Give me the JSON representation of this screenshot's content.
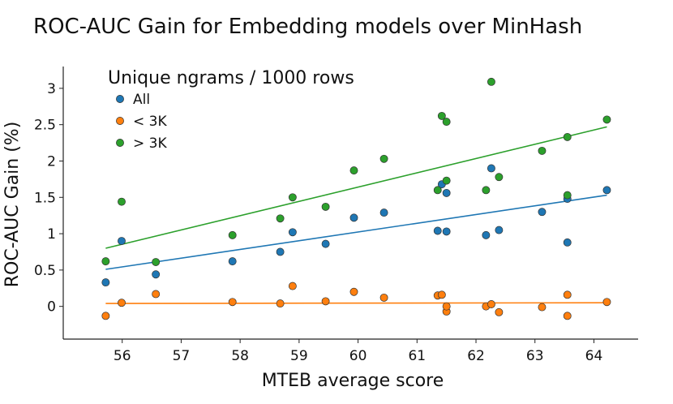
{
  "chart_data": {
    "type": "scatter",
    "title": "ROC-AUC Gain for Embedding models over MinHash",
    "xlabel": "MTEB average score",
    "ylabel": "ROC-AUC Gain (%)",
    "xlim": [
      55.0,
      64.75
    ],
    "ylim": [
      -0.45,
      3.3
    ],
    "xticks": [
      56,
      57,
      58,
      59,
      60,
      61,
      62,
      63,
      64
    ],
    "yticks": [
      0,
      0.5,
      1,
      1.5,
      2,
      2.5,
      3
    ],
    "x_tick_labels": [
      "56",
      "57",
      "58",
      "59",
      "60",
      "61",
      "62",
      "63",
      "64"
    ],
    "y_tick_labels": [
      "0",
      "0.5",
      "1",
      "1.5",
      "2",
      "2.5",
      "3"
    ],
    "grid": false,
    "legend": {
      "title": "Unique ngrams / 1000 rows",
      "position": "top-left"
    },
    "series": [
      {
        "name": "All",
        "color": "#1f77b4",
        "points": [
          [
            55.72,
            0.33
          ],
          [
            55.99,
            0.9
          ],
          [
            56.57,
            0.44
          ],
          [
            57.87,
            0.62
          ],
          [
            58.68,
            0.75
          ],
          [
            58.89,
            1.02
          ],
          [
            59.45,
            0.86
          ],
          [
            59.93,
            1.22
          ],
          [
            60.44,
            1.29
          ],
          [
            61.35,
            1.04
          ],
          [
            61.42,
            1.68
          ],
          [
            61.5,
            1.56
          ],
          [
            61.5,
            1.03
          ],
          [
            62.17,
            0.98
          ],
          [
            62.26,
            1.9
          ],
          [
            62.39,
            1.05
          ],
          [
            63.12,
            1.3
          ],
          [
            63.55,
            1.48
          ],
          [
            63.55,
            0.88
          ],
          [
            64.22,
            1.6
          ]
        ],
        "trend": [
          [
            55.72,
            0.51
          ],
          [
            64.22,
            1.53
          ]
        ]
      },
      {
        "name": "< 3K",
        "color": "#ff7f0e",
        "points": [
          [
            55.72,
            -0.13
          ],
          [
            55.99,
            0.05
          ],
          [
            56.57,
            0.17
          ],
          [
            57.87,
            0.06
          ],
          [
            58.68,
            0.04
          ],
          [
            58.89,
            0.28
          ],
          [
            59.45,
            0.07
          ],
          [
            59.93,
            0.2
          ],
          [
            60.44,
            0.12
          ],
          [
            61.35,
            0.15
          ],
          [
            61.42,
            0.16
          ],
          [
            61.5,
            -0.07
          ],
          [
            61.5,
            0.0
          ],
          [
            62.17,
            0.0
          ],
          [
            62.26,
            0.03
          ],
          [
            62.39,
            -0.08
          ],
          [
            63.12,
            -0.01
          ],
          [
            63.55,
            0.16
          ],
          [
            63.55,
            -0.13
          ],
          [
            64.22,
            0.06
          ]
        ],
        "trend": [
          [
            55.72,
            0.04
          ],
          [
            64.22,
            0.05
          ]
        ]
      },
      {
        "name": "> 3K",
        "color": "#2ca02c",
        "points": [
          [
            55.72,
            0.62
          ],
          [
            55.99,
            1.44
          ],
          [
            56.57,
            0.61
          ],
          [
            57.87,
            0.98
          ],
          [
            58.68,
            1.21
          ],
          [
            58.89,
            1.5
          ],
          [
            59.45,
            1.37
          ],
          [
            59.93,
            1.87
          ],
          [
            60.44,
            2.03
          ],
          [
            61.35,
            1.6
          ],
          [
            61.42,
            2.62
          ],
          [
            61.5,
            2.54
          ],
          [
            61.5,
            1.73
          ],
          [
            62.17,
            1.6
          ],
          [
            62.26,
            3.09
          ],
          [
            62.39,
            1.78
          ],
          [
            63.12,
            2.14
          ],
          [
            63.55,
            2.33
          ],
          [
            63.55,
            1.53
          ],
          [
            64.22,
            2.57
          ]
        ],
        "trend": [
          [
            55.72,
            0.8
          ],
          [
            64.22,
            2.47
          ]
        ]
      }
    ]
  }
}
